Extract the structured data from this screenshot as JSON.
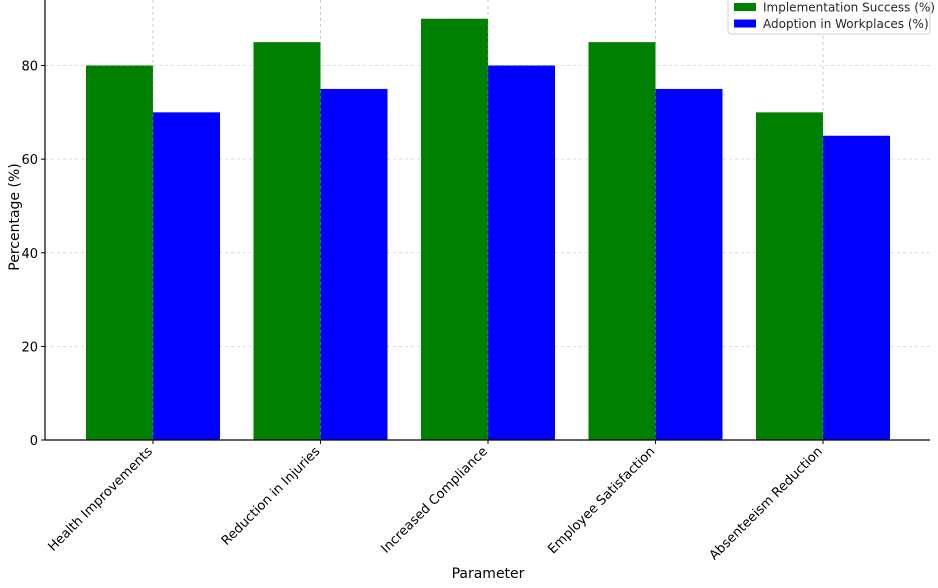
{
  "chart_data": {
    "type": "bar",
    "title": "",
    "xlabel": "Parameter",
    "ylabel": "Percentage (%)",
    "categories": [
      "Health Improvements",
      "Reduction in Injuries",
      "Increased Compliance",
      "Employee Satisfaction",
      "Absenteeism Reduction"
    ],
    "series": [
      {
        "name": "Implementation Success (%)",
        "values": [
          80,
          85,
          90,
          85,
          70
        ],
        "color": "#008000"
      },
      {
        "name": "Adoption in Workplaces (%)",
        "values": [
          70,
          75,
          80,
          75,
          65
        ],
        "color": "#0000ff"
      }
    ],
    "yticks": [
      0,
      20,
      40,
      60,
      80
    ],
    "ylim": [
      0,
      94
    ],
    "grid": true,
    "legend_position": "top-right"
  }
}
